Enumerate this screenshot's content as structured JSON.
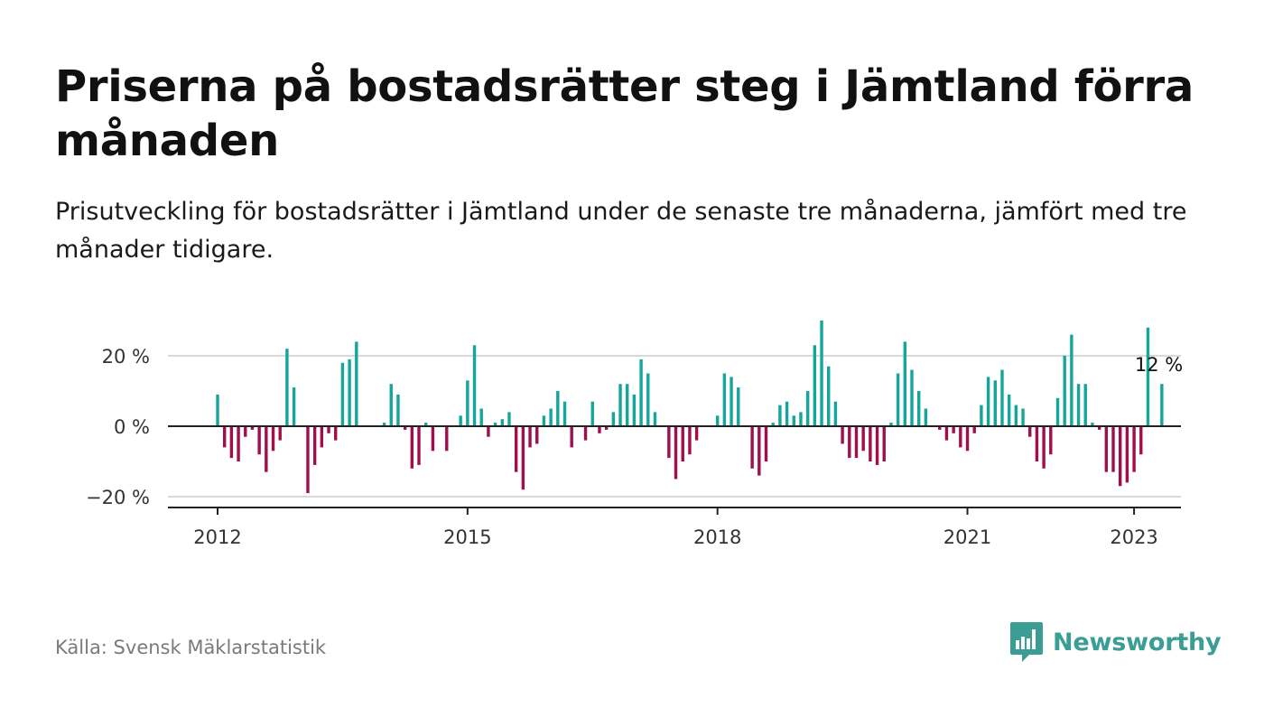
{
  "title": "Priserna på bostadsrätter steg i Jämtland förra månaden",
  "subtitle": "Prisutveckling för bostadsrätter i Jämtland under de senaste tre månaderna, jämfört med tre månader tidigare.",
  "source": "Källa: Svensk Mäklarstatistik",
  "brand": {
    "name": "Newsworthy",
    "logo_icon": "newsworthy-logo-icon",
    "color": "#3b9e95"
  },
  "colors": {
    "positive": "#14a59b",
    "negative": "#a20e4c",
    "axis": "#222222",
    "grid": "#d9d9d9"
  },
  "chart_data": {
    "type": "bar",
    "title": "",
    "xlabel": "",
    "ylabel": "",
    "x_start": "2012-01",
    "x_ticks": [
      "2012",
      "2015",
      "2018",
      "2021",
      "2023"
    ],
    "y_ticks": [
      "20 %",
      "0 %",
      "−20 %"
    ],
    "y_tick_values": [
      20,
      0,
      -20
    ],
    "ylim": [
      -23,
      32
    ],
    "grid": true,
    "last_value_label": "12 %",
    "series": [
      {
        "values": [
          9,
          -6,
          -9,
          -10,
          -3,
          -1,
          -8,
          -13,
          -7,
          -4,
          22,
          11,
          0,
          -19,
          -11,
          -6,
          -2,
          -4,
          18,
          19,
          24,
          0,
          0,
          0,
          1,
          12,
          9,
          -1,
          -12,
          -11,
          1,
          -7,
          0,
          -7,
          0,
          3,
          13,
          23,
          5,
          -3,
          1,
          2,
          4,
          -13,
          -18,
          -6,
          -5,
          3,
          5,
          10,
          7,
          -6,
          0,
          -4,
          7,
          -2,
          -1,
          4,
          12,
          12,
          9,
          19,
          15,
          4,
          0,
          -9,
          -15,
          -10,
          -8,
          -4,
          0,
          0,
          3,
          15,
          14,
          11,
          0,
          -12,
          -14,
          -10,
          1,
          6,
          7,
          3,
          4,
          10,
          23,
          30,
          17,
          7,
          -5,
          -9,
          -9,
          -7,
          -10,
          -11,
          -10,
          1,
          15,
          24,
          16,
          10,
          5,
          0,
          -1,
          -4,
          -2,
          -6,
          -7,
          -2,
          6,
          14,
          13,
          16,
          9,
          6,
          5,
          -3,
          -10,
          -12,
          -8,
          8,
          20,
          26,
          12,
          12,
          1,
          -1,
          -13,
          -13,
          -17,
          -16,
          -13,
          -8,
          28,
          0,
          12
        ]
      }
    ]
  }
}
